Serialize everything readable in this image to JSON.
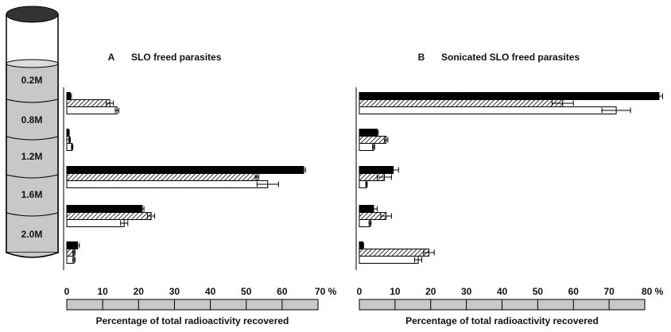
{
  "tube": {
    "labels": [
      "0.2M",
      "0.8M",
      "1.2M",
      "1.6M",
      "2.0M"
    ]
  },
  "chart_data": [
    {
      "type": "bar",
      "orientation": "horizontal",
      "panel": "A",
      "title": "SLO freed parasites",
      "xlabel": "Percentage of total radioactivity recovered",
      "categories": [
        null,
        null,
        null,
        null,
        null
      ],
      "series": [
        {
          "style": "solid",
          "color": "#000000",
          "values": [
            1,
            0.5,
            66,
            21,
            3
          ],
          "errors": [
            0.3,
            0.2,
            0.5,
            0.5,
            0.5
          ]
        },
        {
          "style": "hatched",
          "color": "#555555",
          "values": [
            12,
            0.8,
            53,
            23.5,
            2
          ],
          "errors": [
            1,
            0.2,
            0.5,
            1,
            0.3
          ]
        },
        {
          "style": "open",
          "color": "#ffffff",
          "values": [
            14,
            1.5,
            56,
            16,
            2
          ],
          "errors": [
            0.5,
            0.2,
            3,
            1,
            0.3
          ]
        }
      ],
      "xlim": [
        0,
        70
      ],
      "xticks": [
        0,
        10,
        20,
        30,
        40,
        50,
        60,
        {
          "value": 70,
          "label": "70 %"
        }
      ]
    },
    {
      "type": "bar",
      "orientation": "horizontal",
      "panel": "B",
      "title": "Sonicated SLO freed parasites",
      "xlabel": "Percentage of total radioactivity recovered",
      "categories": [
        null,
        null,
        null,
        null,
        null
      ],
      "series": [
        {
          "style": "solid",
          "color": "#000000",
          "values": [
            84,
            5,
            9.5,
            4,
            1
          ],
          "errors": [
            1,
            0.3,
            1.5,
            1,
            0.2
          ]
        },
        {
          "style": "hatched",
          "color": "#555555",
          "values": [
            57,
            7.5,
            7,
            7.5,
            19.5
          ],
          "errors": [
            3,
            0.5,
            2,
            1.5,
            1.5
          ]
        },
        {
          "style": "open",
          "color": "#ffffff",
          "values": [
            72,
            4,
            2,
            3,
            16.5
          ],
          "errors": [
            4,
            0.3,
            0.2,
            0.3,
            1
          ]
        }
      ],
      "xlim": [
        0,
        80
      ],
      "xticks": [
        0,
        10,
        20,
        30,
        40,
        50,
        60,
        70,
        {
          "value": 80,
          "label": "80 %"
        }
      ]
    }
  ]
}
